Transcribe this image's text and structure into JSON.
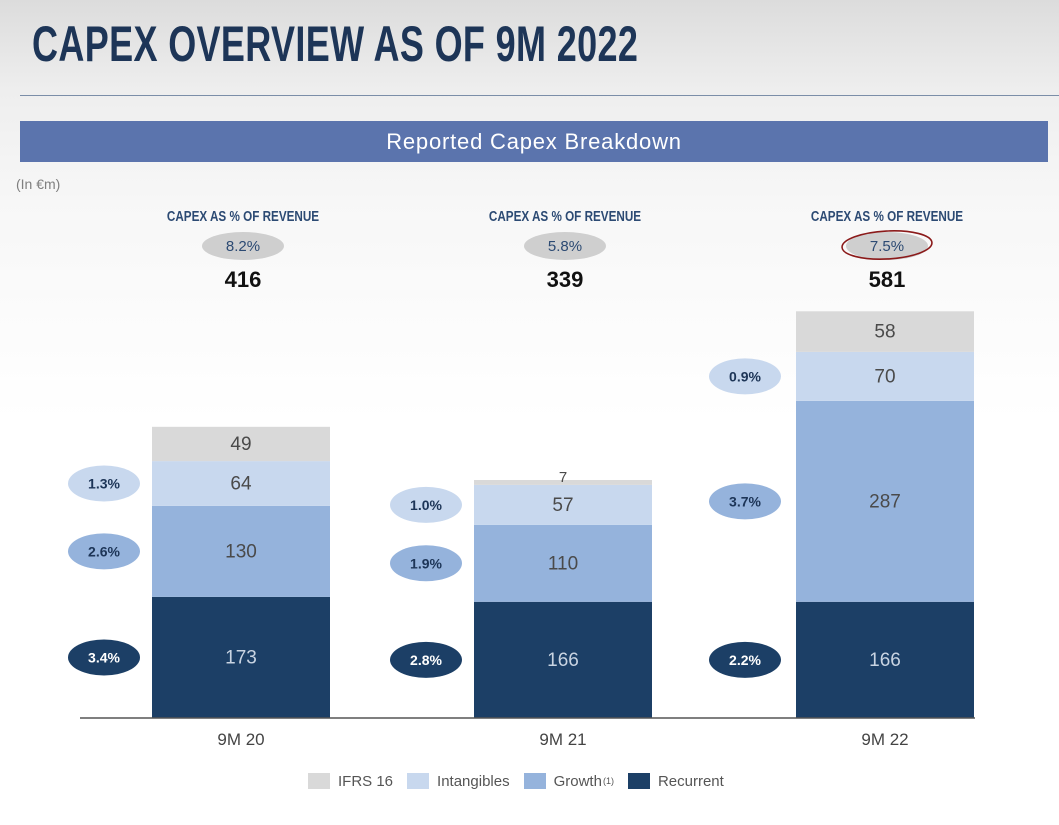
{
  "page": {
    "title": "CAPEX OVERVIEW AS OF 9M 2022",
    "banner": "Reported Capex Breakdown",
    "unit_label": "(In €m)",
    "capex_ratio_label": "CAPEX AS %  OF REVENUE"
  },
  "colors": {
    "ifrs16": "#d9d9d9",
    "intangibles": "#c8d8ee",
    "growth": "#95b3dc",
    "recurrent": "#1c3f66",
    "banner": "#5b74ad",
    "title": "#1d3557",
    "highlight_circle": "#8b1a1a"
  },
  "chart_data": {
    "type": "bar",
    "stacked": true,
    "categories": [
      "9M 20",
      "9M 21",
      "9M 22"
    ],
    "series": [
      {
        "key": "recurrent",
        "name": "Recurrent",
        "values": [
          173,
          166,
          166
        ],
        "pct_of_revenue": [
          "3.4%",
          "2.8%",
          "2.2%"
        ]
      },
      {
        "key": "growth",
        "name": "Growth",
        "footnote": "(1)",
        "values": [
          130,
          110,
          287
        ],
        "pct_of_revenue": [
          "2.6%",
          "1.9%",
          "3.7%"
        ]
      },
      {
        "key": "intangibles",
        "name": "Intangibles",
        "values": [
          64,
          57,
          70
        ],
        "pct_of_revenue": [
          "1.3%",
          "1.0%",
          "0.9%"
        ]
      },
      {
        "key": "ifrs16",
        "name": "IFRS 16",
        "values": [
          49,
          7,
          58
        ]
      }
    ],
    "totals": [
      416,
      339,
      581
    ],
    "capex_pct_of_revenue": [
      "8.2%",
      "5.8%",
      "7.5%"
    ],
    "highlighted_category": "9M 22",
    "legend_order": [
      "ifrs16",
      "intangibles",
      "growth",
      "recurrent"
    ],
    "legend_position": "bottom",
    "grid": false,
    "ylim": [
      0,
      600
    ]
  }
}
